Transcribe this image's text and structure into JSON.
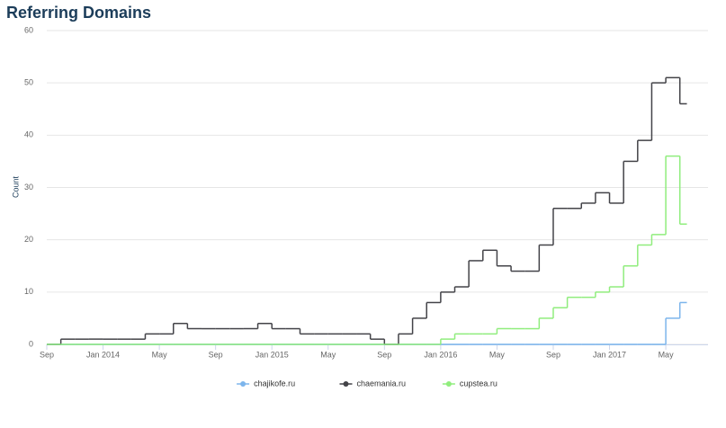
{
  "chart_data": {
    "type": "line",
    "step": true,
    "title": "Referring Domains",
    "y_label": "Count",
    "x": [
      "2013-09",
      "2013-10",
      "2013-11",
      "2013-12",
      "2014-01",
      "2014-02",
      "2014-03",
      "2014-04",
      "2014-05",
      "2014-06",
      "2014-07",
      "2014-08",
      "2014-09",
      "2014-10",
      "2014-11",
      "2014-12",
      "2015-01",
      "2015-02",
      "2015-03",
      "2015-04",
      "2015-05",
      "2015-06",
      "2015-07",
      "2015-08",
      "2015-09",
      "2015-10",
      "2015-11",
      "2015-12",
      "2016-01",
      "2016-02",
      "2016-03",
      "2016-04",
      "2016-05",
      "2016-06",
      "2016-07",
      "2016-08",
      "2016-09",
      "2016-10",
      "2016-11",
      "2016-12",
      "2017-01",
      "2017-02",
      "2017-03",
      "2017-04",
      "2017-05",
      "2017-06"
    ],
    "series": [
      {
        "name": "chajikofe.ru",
        "color": "#7cb5ec",
        "values": [
          0,
          0,
          0,
          0,
          0,
          0,
          0,
          0,
          0,
          0,
          0,
          0,
          0,
          0,
          0,
          0,
          0,
          0,
          0,
          0,
          0,
          0,
          0,
          0,
          0,
          0,
          0,
          0,
          0,
          0,
          0,
          0,
          0,
          0,
          0,
          0,
          0,
          0,
          0,
          0,
          0,
          0,
          0,
          0,
          5,
          8
        ]
      },
      {
        "name": "chaemania.ru",
        "color": "#434348",
        "values": [
          0,
          1,
          1,
          1,
          1,
          1,
          1,
          2,
          2,
          4,
          3,
          3,
          3,
          3,
          3,
          4,
          3,
          3,
          2,
          2,
          2,
          2,
          2,
          1,
          0,
          2,
          5,
          8,
          10,
          11,
          16,
          18,
          15,
          14,
          14,
          19,
          26,
          26,
          27,
          29,
          27,
          35,
          39,
          50,
          51,
          46
        ]
      },
      {
        "name": "cupstea.ru",
        "color": "#90ed7d",
        "values": [
          0,
          0,
          0,
          0,
          0,
          0,
          0,
          0,
          0,
          0,
          0,
          0,
          0,
          0,
          0,
          0,
          0,
          0,
          0,
          0,
          0,
          0,
          0,
          0,
          0,
          0,
          0,
          0,
          1,
          2,
          2,
          2,
          3,
          3,
          3,
          5,
          7,
          9,
          9,
          10,
          11,
          15,
          19,
          21,
          36,
          23
        ]
      }
    ],
    "xlim": [
      "2013-09",
      "2017-08"
    ],
    "xticks": [
      {
        "value": "2013-09",
        "label": "Sep"
      },
      {
        "value": "2014-01",
        "label": "Jan 2014"
      },
      {
        "value": "2014-05",
        "label": "May"
      },
      {
        "value": "2014-09",
        "label": "Sep"
      },
      {
        "value": "2015-01",
        "label": "Jan 2015"
      },
      {
        "value": "2015-05",
        "label": "May"
      },
      {
        "value": "2015-09",
        "label": "Sep"
      },
      {
        "value": "2016-01",
        "label": "Jan 2016"
      },
      {
        "value": "2016-05",
        "label": "May"
      },
      {
        "value": "2016-09",
        "label": "Sep"
      },
      {
        "value": "2017-01",
        "label": "Jan 2017"
      },
      {
        "value": "2017-05",
        "label": "May"
      }
    ],
    "ylim": [
      0,
      60
    ],
    "yticks": [
      0,
      10,
      20,
      30,
      40,
      50,
      60
    ],
    "grid": true,
    "legend": "bottom"
  }
}
